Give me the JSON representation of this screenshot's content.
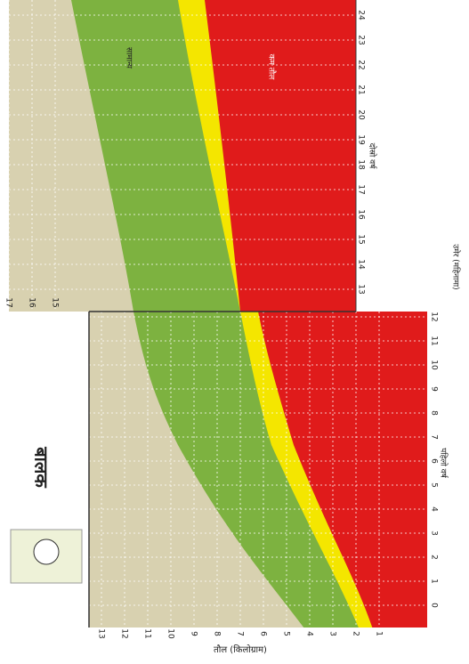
{
  "chart_data": {
    "type": "growth-chart",
    "title": "बालक",
    "y_label": "तौल (किलोग्राम)",
    "x_label": "उमेर (महिनामा)",
    "year_labels": [
      "पहिलो वर्ष",
      "दोस्रो वर्ष"
    ],
    "band_labels": [
      "सामान्य",
      "कम तौल"
    ],
    "months_first_year": [
      0,
      1,
      2,
      3,
      4,
      5,
      6,
      7,
      8,
      9,
      10,
      11,
      12
    ],
    "months_second_year": [
      13,
      14,
      15,
      16,
      17,
      18,
      19,
      20,
      21,
      22,
      23,
      24
    ],
    "weights_first_year": [
      1,
      2,
      3,
      4,
      5,
      6,
      7,
      8,
      9,
      10,
      11,
      12,
      13
    ],
    "weights_second_year": [
      15,
      16,
      17
    ]
  }
}
